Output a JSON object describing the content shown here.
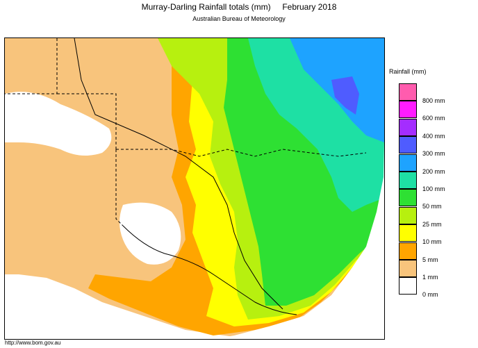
{
  "header": {
    "title": "Murray-Darling Rainfall totals (mm)     February 2018",
    "subtitle": "Australian Bureau of Meteorology"
  },
  "footer": {
    "url": "http://www.bom.gov.au"
  },
  "legend": {
    "title": "Rainfall (mm)",
    "items": [
      {
        "label": "800 mm",
        "color": "#ff5cae"
      },
      {
        "label": "600 mm",
        "color": "#ff1cff"
      },
      {
        "label": "400 mm",
        "color": "#a42dff"
      },
      {
        "label": "300 mm",
        "color": "#4f5cff"
      },
      {
        "label": "200 mm",
        "color": "#1ea3ff"
      },
      {
        "label": "100 mm",
        "color": "#1ee0a4"
      },
      {
        "label": "50 mm",
        "color": "#2ee033"
      },
      {
        "label": "25 mm",
        "color": "#b7f00f"
      },
      {
        "label": "10 mm",
        "color": "#ffff00"
      },
      {
        "label": "5 mm",
        "color": "#ffa500"
      },
      {
        "label": "1 mm",
        "color": "#f8c47c"
      },
      {
        "label": "0 mm",
        "color": "#ffffff"
      }
    ]
  },
  "map": {
    "colors": {
      "none": "#ffffff",
      "light": "#f8c47c",
      "orange": "#ffa500",
      "yellow": "#ffff00",
      "lime": "#b7f00f",
      "green": "#2ee033",
      "teal": "#1ee0a4",
      "blue": "#1ea3ff",
      "indigo": "#4f5cff",
      "ocean": "#ffffff",
      "border": "#000000"
    }
  }
}
